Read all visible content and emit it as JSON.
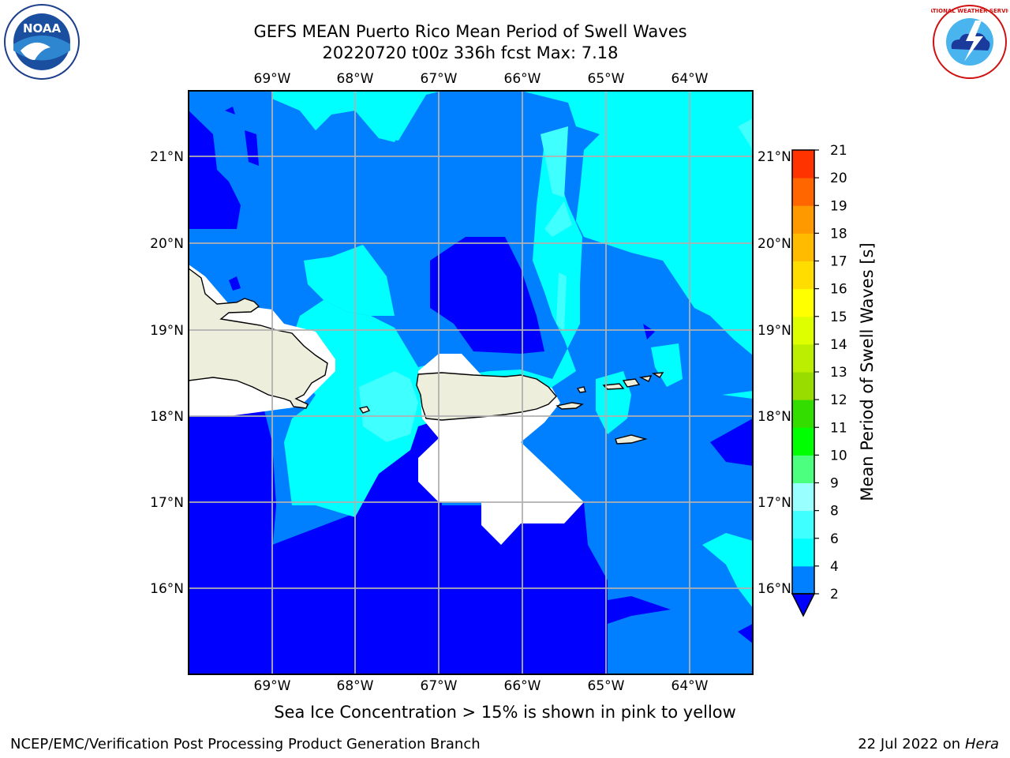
{
  "header": {
    "title": "GEFS MEAN Puerto Rico Mean Period of Swell Waves",
    "subtitle": "20220720 t00z 336h fcst   Max: 7.18"
  },
  "map": {
    "lon_labels": [
      "69°W",
      "68°W",
      "67°W",
      "66°W",
      "65°W",
      "64°W"
    ],
    "lat_labels": [
      "21°N",
      "20°N",
      "19°N",
      "18°N",
      "17°N",
      "16°N"
    ],
    "colors": {
      "dark_blue": "#0000ff",
      "mid_blue": "#0080ff",
      "cyan": "#00ffff",
      "light_cyan": "#40ffff",
      "land": "#eeeedd",
      "grid": "#b0b0b0"
    }
  },
  "colorbar": {
    "label": "Mean Period of Swell Waves [s]",
    "ticks": [
      "2",
      "4",
      "6",
      "8",
      "9",
      "10",
      "11",
      "12",
      "13",
      "14",
      "15",
      "16",
      "17",
      "18",
      "19",
      "20",
      "21"
    ],
    "colors": [
      "#0080ff",
      "#00ffff",
      "#40ffff",
      "#99ffff",
      "#4cff7f",
      "#00ff00",
      "#33dd00",
      "#99dd00",
      "#bbee00",
      "#ddff00",
      "#ffff00",
      "#ffdd00",
      "#ffbb00",
      "#ff9900",
      "#ff6600",
      "#ff3300",
      "#ff0000"
    ],
    "under_color": "#0000ff"
  },
  "footer": {
    "note": "Sea Ice Concentration > 15% is shown in pink to yellow",
    "left": "NCEP/EMC/Verification Post Processing Product Generation Branch",
    "date": "22 Jul 2022 on ",
    "machine": "Hera"
  },
  "logos": {
    "noaa_text": "NOAA",
    "nws_text": "NATIONAL WEATHER SERVICE"
  }
}
